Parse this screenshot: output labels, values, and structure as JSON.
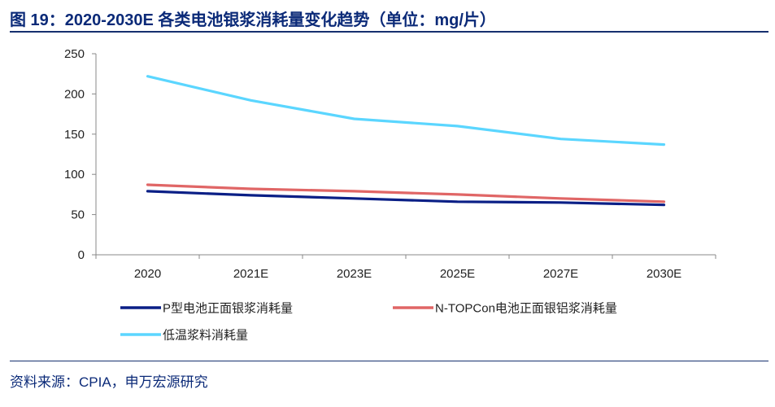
{
  "header": {
    "title": "图 19：2020-2030E 各类电池银浆消耗量变化趋势（单位：mg/片）"
  },
  "footer": {
    "source": "资料来源：CPIA，申万宏源研究"
  },
  "chart_data": {
    "type": "line",
    "categories": [
      "2020",
      "2021E",
      "2023E",
      "2025E",
      "2027E",
      "2030E"
    ],
    "ylim": [
      0,
      250
    ],
    "yticks": [
      0,
      50,
      100,
      150,
      200,
      250
    ],
    "grid": false,
    "legend_position": "bottom",
    "series": [
      {
        "name": "P型电池正面银浆消耗量",
        "color": "#0a1f86",
        "values": [
          79,
          74,
          70,
          66,
          65,
          62
        ]
      },
      {
        "name": "N-TOPCon电池正面银铝浆消耗量",
        "color": "#e06666",
        "values": [
          87,
          82,
          79,
          75,
          70,
          66
        ]
      },
      {
        "name": "低温浆料消耗量",
        "color": "#5bd6ff",
        "values": [
          222,
          192,
          169,
          160,
          144,
          137
        ]
      }
    ]
  }
}
